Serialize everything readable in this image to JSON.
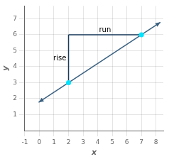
{
  "chart_data": {
    "type": "scatter",
    "series": [
      {
        "type": "line",
        "color": "#3a6080",
        "marker": "arrow",
        "x": [
          -0.05,
          8.3
        ],
        "values": [
          1.77,
          6.78
        ]
      },
      {
        "type": "line",
        "color": "#1a3a5c",
        "x": [
          2,
          2
        ],
        "values": [
          3,
          6
        ]
      },
      {
        "type": "line",
        "color": "#1a3a5c",
        "x": [
          2,
          7
        ],
        "values": [
          6,
          6
        ]
      },
      {
        "type": "scatter",
        "color": "#00E5FF",
        "marker": "circle",
        "x": [
          2,
          7
        ],
        "values": [
          3,
          6
        ]
      }
    ],
    "annotations": [
      {
        "text": "rise",
        "x": 1.4,
        "y": 4.5
      },
      {
        "text": "run",
        "x": 4.5,
        "y": 6.3
      }
    ],
    "xlabel": "x",
    "ylabel": "y",
    "xlim": [
      -1,
      8.5
    ],
    "xticks": [
      -1,
      0,
      1,
      2,
      3,
      4,
      5,
      6,
      7,
      8
    ],
    "ylim": [
      0,
      7.8
    ],
    "yticks": [
      1,
      2,
      3,
      4,
      5,
      6,
      7
    ],
    "grid": true
  }
}
